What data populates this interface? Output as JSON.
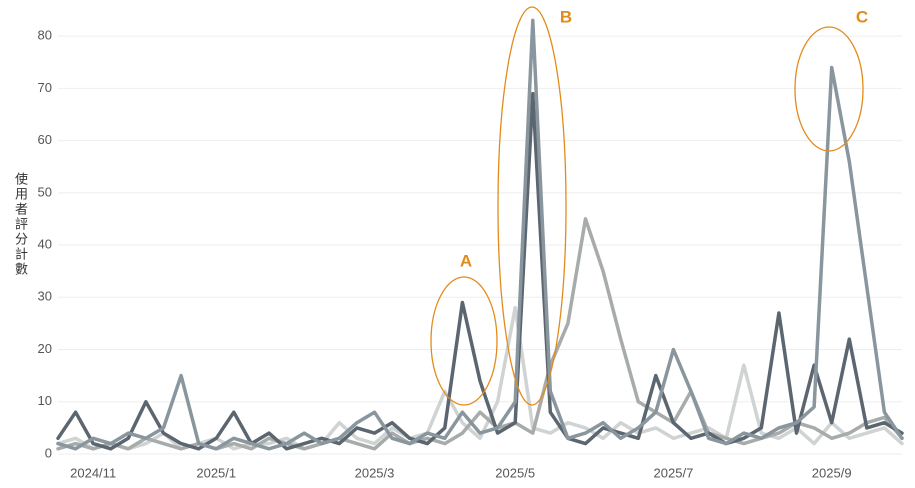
{
  "chart_data": {
    "type": "line",
    "y_label": "使用者評分計數",
    "annotations": [
      "A",
      "B",
      "C"
    ],
    "categories": [
      null,
      null,
      "2024/11",
      null,
      null,
      null,
      null,
      null,
      null,
      "2025/1",
      null,
      null,
      null,
      null,
      null,
      null,
      null,
      null,
      "2025/3",
      null,
      null,
      null,
      null,
      null,
      null,
      null,
      "2025/5",
      null,
      null,
      null,
      null,
      null,
      null,
      null,
      null,
      "2025/7",
      null,
      null,
      null,
      null,
      null,
      null,
      null,
      null,
      "2025/9",
      null,
      null,
      null,
      null
    ],
    "series": [
      {
        "color": "#d0d3d3",
        "values": [
          2,
          3,
          1,
          2,
          1,
          2,
          4,
          1,
          2,
          3,
          1,
          2,
          2,
          3,
          1,
          2,
          6,
          3,
          2,
          5,
          3,
          4,
          12,
          6,
          3,
          10,
          28,
          5,
          4,
          6,
          5,
          3,
          6,
          4,
          5,
          3,
          4,
          5,
          3,
          17,
          4,
          3,
          5,
          2,
          6,
          3,
          4,
          5,
          2
        ]
      },
      {
        "color": "#a7abaa",
        "values": [
          1,
          2,
          1,
          2,
          1,
          3,
          2,
          1,
          2,
          1,
          2,
          1,
          3,
          2,
          1,
          2,
          3,
          2,
          1,
          4,
          2,
          3,
          2,
          4,
          8,
          5,
          6,
          4,
          17,
          25,
          45,
          35,
          22,
          10,
          8,
          6,
          12,
          4,
          3,
          2,
          3,
          4,
          6,
          5,
          3,
          4,
          6,
          7,
          3
        ]
      },
      {
        "color": "#5b6670",
        "values": [
          3,
          8,
          2,
          1,
          3,
          10,
          4,
          2,
          1,
          3,
          8,
          2,
          4,
          1,
          2,
          3,
          2,
          5,
          4,
          6,
          3,
          2,
          5,
          29,
          14,
          4,
          6,
          69,
          8,
          3,
          2,
          5,
          4,
          3,
          15,
          6,
          3,
          4,
          2,
          3,
          5,
          27,
          4,
          17,
          6,
          22,
          5,
          6,
          4
        ]
      },
      {
        "color": "#8a969e",
        "values": [
          2,
          1,
          3,
          2,
          4,
          3,
          5,
          15,
          2,
          1,
          3,
          2,
          1,
          2,
          4,
          2,
          3,
          6,
          8,
          3,
          2,
          4,
          3,
          8,
          4,
          5,
          10,
          83,
          12,
          3,
          4,
          6,
          3,
          5,
          8,
          20,
          12,
          3,
          2,
          4,
          3,
          5,
          6,
          9,
          74,
          56,
          32,
          8,
          3
        ]
      }
    ],
    "ylim": [
      0,
      85
    ],
    "yticks": [
      0,
      10,
      20,
      30,
      40,
      50,
      60,
      70,
      80
    ],
    "grid": true
  }
}
